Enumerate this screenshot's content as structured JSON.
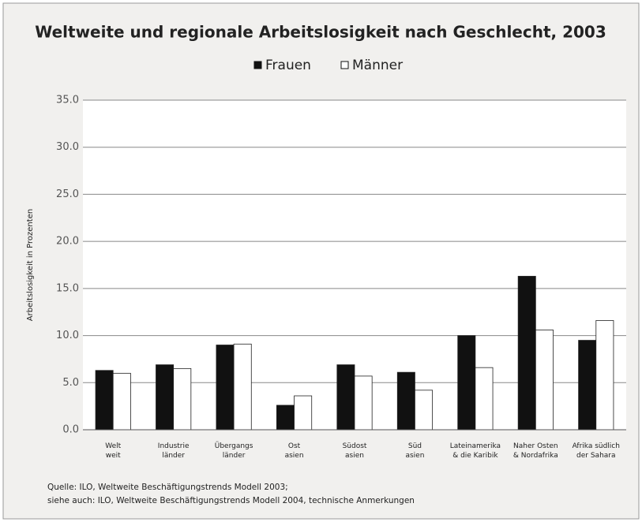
{
  "chart_data": {
    "type": "bar",
    "title": "Weltweite und regionale Arbeitslosigkeit nach Geschlecht, 2003",
    "y_label": "Arbeitslosigkeit in Prozenten",
    "categories": [
      "Welt\nweit",
      "Industrie\nländer",
      "Übergangs\nländer",
      "Ost\nasien",
      "Südost\nasien",
      "Süd\nasien",
      "Lateinamerika\n& die Karibik",
      "Naher Osten\n& Nordafrika",
      "Afrika südlich\nder Sahara"
    ],
    "series": [
      {
        "name": "Frauen",
        "color": "#111111",
        "values": [
          6.3,
          6.9,
          9.0,
          2.6,
          6.9,
          6.1,
          10.0,
          16.3,
          9.5
        ]
      },
      {
        "name": "Männer",
        "color": "#ffffff",
        "values": [
          6.0,
          6.5,
          9.1,
          3.6,
          5.7,
          4.2,
          6.6,
          10.6,
          11.6
        ]
      }
    ],
    "ylim": [
      0,
      35
    ],
    "yticks": [
      {
        "value": 0,
        "label": "0.0"
      },
      {
        "value": 5,
        "label": "5.0"
      },
      {
        "value": 10,
        "label": "10.0"
      },
      {
        "value": 15,
        "label": "15.0"
      },
      {
        "value": 20,
        "label": "20.0"
      },
      {
        "value": 25,
        "label": "25.0"
      },
      {
        "value": 30,
        "label": "30.0"
      },
      {
        "value": 35,
        "label": "35.0"
      }
    ],
    "grid": true,
    "source": [
      "Quelle: ILO, Weltweite Beschäftigungstrends Modell 2003;",
      "siehe auch: ILO, Weltweite Beschäftigungstrends Modell 2004, technische Anmerkungen"
    ]
  }
}
